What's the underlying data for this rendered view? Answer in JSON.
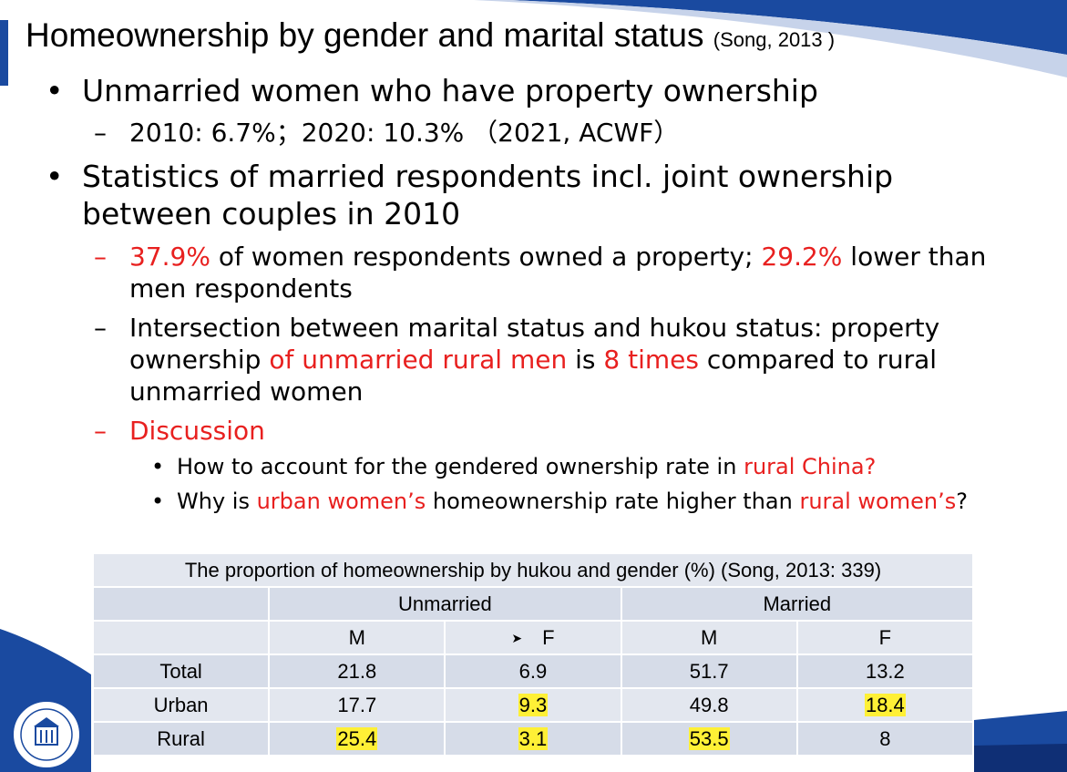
{
  "slide": {
    "title": "Homeownership by gender and marital status",
    "title_citation": "(Song, 2013 )",
    "bullet1": {
      "text": "Unmarried women who have property ownership",
      "sub": "2010: 6.7%；2020: 10.3% （2021, ACWF）"
    },
    "bullet2": {
      "text": "Statistics of married respondents incl. joint ownership between couples in 2010",
      "sub1": {
        "v1": "37.9%",
        "t1": " of women respondents owned a property; ",
        "v2": "29.2%",
        "t2": " lower than men respondents"
      },
      "sub2": {
        "t1": "Intersection between marital status and hukou status:  property ownership ",
        "r1": "of unmarried rural men",
        "t2": " is ",
        "r2": "8 times",
        "t3": " compared to rural unmarried women"
      },
      "sub3": {
        "label": "Discussion",
        "q1": {
          "t1": "How to account for the gendered ownership rate in ",
          "r1": "rural China?"
        },
        "q2": {
          "t1": "Why is ",
          "r1": "urban women’s",
          "t2": " homeownership rate higher than ",
          "r2": "rural women’s",
          "t3": "?"
        }
      }
    }
  },
  "table": {
    "caption": "The proportion of homeownership by hukou and gender (%) (Song, 2013: 339)",
    "groups": [
      "Unmarried",
      "Married"
    ],
    "subheaders": [
      "M",
      "F",
      "M",
      "F"
    ],
    "rows": [
      {
        "label": "Total",
        "values": [
          "21.8",
          "6.9",
          "51.7",
          "13.2"
        ]
      },
      {
        "label": "Urban",
        "values": [
          "17.7",
          "9.3",
          "49.8",
          "18.4"
        ]
      },
      {
        "label": "Rural",
        "values": [
          "25.4",
          "3.1",
          "53.5",
          "8"
        ]
      }
    ]
  },
  "colors": {
    "accent_red": "#e8201f",
    "highlight": "#fff036",
    "brand_blue": "#1a4aa0",
    "table_bg": "#e3e7ef"
  },
  "icons": {
    "cursor": "mouse-pointer-icon",
    "logo": "university-seal-logo"
  }
}
